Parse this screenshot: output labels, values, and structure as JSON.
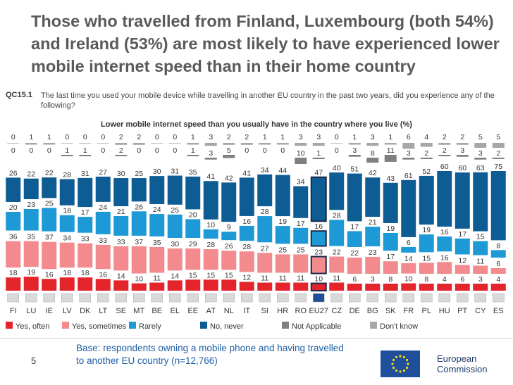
{
  "title": "Those who travelled from Finland, Luxembourg (both 54%) and Ireland (53%) are most likely to have experienced lower mobile internet speed than in their home country",
  "question_code": "QC15.1",
  "question_text": "The last time you used your mobile device while travelling in another EU country in the past two years, did you experience any of the following?",
  "footer": {
    "page_number": "5",
    "base": "Base: respondents owning a mobile phone and having travelled to another EU country (n=12,766)",
    "logo_text_line1": "European",
    "logo_text_line2": "Commission"
  },
  "colors": {
    "yes_often": "#e3242b",
    "yes_sometimes": "#f28a8e",
    "rarely": "#1d9ad6",
    "no_never": "#0d5c94",
    "not_applicable": "#7f7f7f",
    "dont_know": "#a7a7a7",
    "highlight_outline": "#1a2a4a"
  },
  "chart_data": {
    "type": "bar",
    "stacked": true,
    "subtitle": "Lower mobile internet speed than you usually have in the country where you live (%)",
    "categories": [
      "FI",
      "LU",
      "IE",
      "LV",
      "DK",
      "LT",
      "SE",
      "MT",
      "BE",
      "EL",
      "EE",
      "AT",
      "NL",
      "IT",
      "SI",
      "HR",
      "RO",
      "EU27",
      "CZ",
      "DE",
      "BG",
      "SK",
      "FR",
      "PL",
      "HU",
      "PT",
      "CY",
      "ES"
    ],
    "highlight_category": "EU27",
    "series": [
      {
        "name": "Yes, often",
        "values": [
          18,
          19,
          16,
          18,
          18,
          16,
          14,
          10,
          11,
          14,
          15,
          15,
          15,
          12,
          11,
          11,
          11,
          10,
          11,
          6,
          3,
          8,
          10,
          8,
          4,
          6,
          3,
          4
        ]
      },
      {
        "name": "Yes, sometimes",
        "values": [
          36,
          35,
          37,
          34,
          33,
          33,
          33,
          37,
          35,
          30,
          29,
          28,
          26,
          28,
          27,
          25,
          25,
          23,
          22,
          22,
          23,
          17,
          14,
          15,
          16,
          12,
          11,
          6
        ]
      },
      {
        "name": "Rarely",
        "values": [
          20,
          23,
          25,
          18,
          17,
          24,
          21,
          26,
          24,
          25,
          20,
          10,
          9,
          16,
          28,
          19,
          17,
          16,
          28,
          17,
          21,
          19,
          6,
          19,
          16,
          17,
          15,
          8
        ]
      },
      {
        "name": "No, never",
        "values": [
          26,
          22,
          22,
          28,
          31,
          27,
          30,
          25,
          30,
          31,
          35,
          41,
          42,
          41,
          34,
          44,
          34,
          47,
          40,
          51,
          42,
          43,
          61,
          52,
          60,
          60,
          63,
          75
        ]
      },
      {
        "name": "Not Applicable",
        "values": [
          0,
          0,
          0,
          1,
          1,
          0,
          2,
          0,
          0,
          0,
          1,
          3,
          5,
          0,
          0,
          0,
          10,
          1,
          0,
          3,
          8,
          11,
          3,
          2,
          2,
          3,
          3,
          2
        ]
      },
      {
        "name": "Don't know",
        "values": [
          0,
          1,
          1,
          0,
          0,
          0,
          2,
          2,
          0,
          0,
          1,
          3,
          2,
          2,
          1,
          1,
          3,
          3,
          0,
          1,
          3,
          1,
          6,
          4,
          2,
          2,
          5,
          5
        ]
      }
    ]
  }
}
